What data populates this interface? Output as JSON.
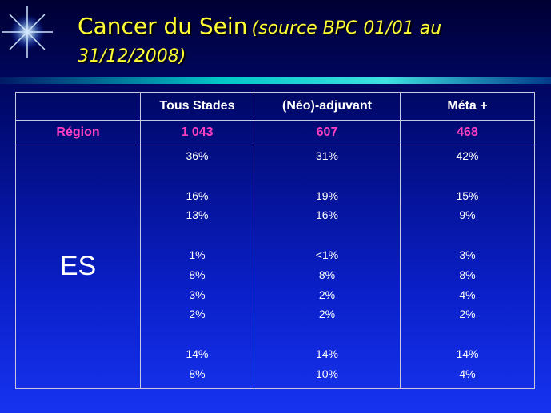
{
  "header": {
    "title": "Cancer du Sein",
    "source": "(source BPC 01/01 au 31/12/2008)"
  },
  "table": {
    "columns": [
      "Tous Stades",
      "(Néo)-adjuvant",
      "Méta +"
    ],
    "region": {
      "label": "Région",
      "values": [
        "1 043",
        "607",
        "468"
      ]
    },
    "es": {
      "label": "ES",
      "columns": [
        [
          [
            "36%"
          ],
          [
            "16%",
            "13%"
          ],
          [
            "1%",
            "8%",
            "3%",
            "2%"
          ],
          [
            "14%",
            "8%"
          ]
        ],
        [
          [
            "31%"
          ],
          [
            "19%",
            "16%"
          ],
          [
            "<1%",
            "8%",
            "2%",
            "2%"
          ],
          [
            "14%",
            "10%"
          ]
        ],
        [
          [
            "42%"
          ],
          [
            "15%",
            "9%"
          ],
          [
            "3%",
            "8%",
            "4%",
            "2%"
          ],
          [
            "14%",
            "4%"
          ]
        ]
      ]
    }
  }
}
